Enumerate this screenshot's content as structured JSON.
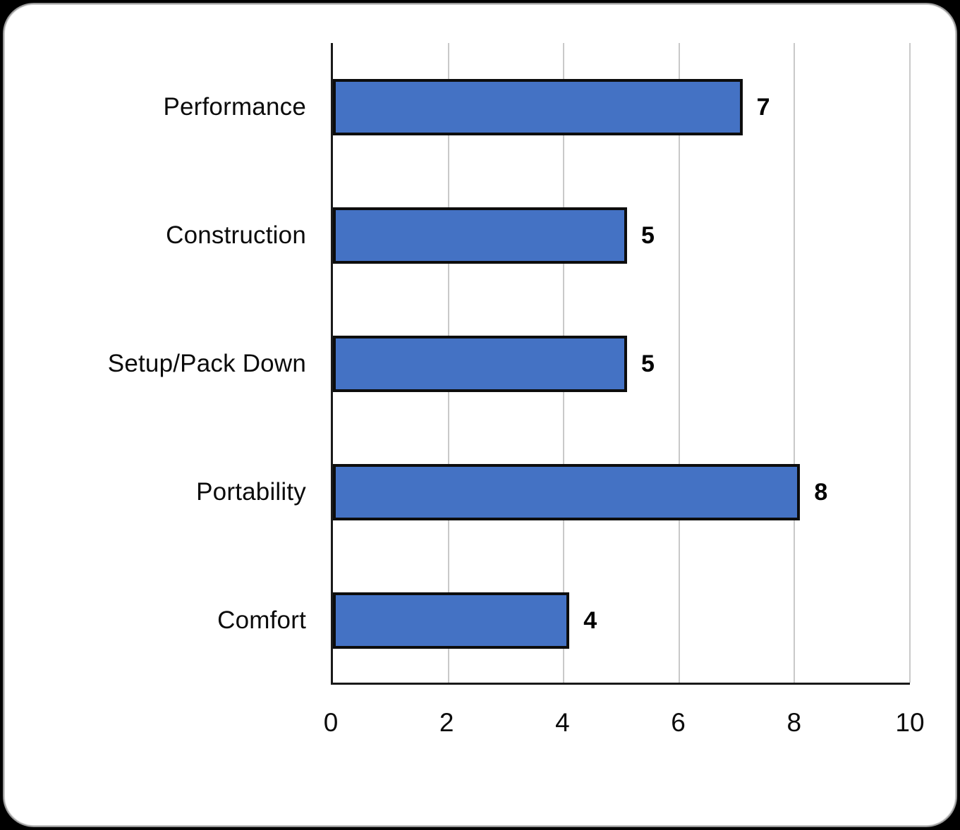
{
  "chart_data": {
    "type": "bar",
    "orientation": "horizontal",
    "title": "",
    "xlabel": "",
    "ylabel": "",
    "categories": [
      "Performance",
      "Construction",
      "Setup/Pack Down",
      "Portability",
      "Comfort"
    ],
    "values": [
      7,
      5,
      5,
      8,
      4
    ],
    "data_labels": [
      "7",
      "5",
      "5",
      "8",
      "4"
    ],
    "xlim": [
      0,
      10
    ],
    "x_ticks": [
      0,
      2,
      4,
      6,
      8,
      10
    ],
    "x_tick_labels": [
      "0",
      "2",
      "4",
      "6",
      "8",
      "10"
    ],
    "gridlines": "vertical, every 2 units",
    "legend": "none",
    "colors": {
      "bar_fill": "#4472C4",
      "bar_border": "#0D0D0D",
      "gridline": "#C9C9C9",
      "axis_line": "#1A1A1A",
      "text": "#000000",
      "panel_background": "#FFFFFF",
      "page_background": "#000000"
    }
  }
}
